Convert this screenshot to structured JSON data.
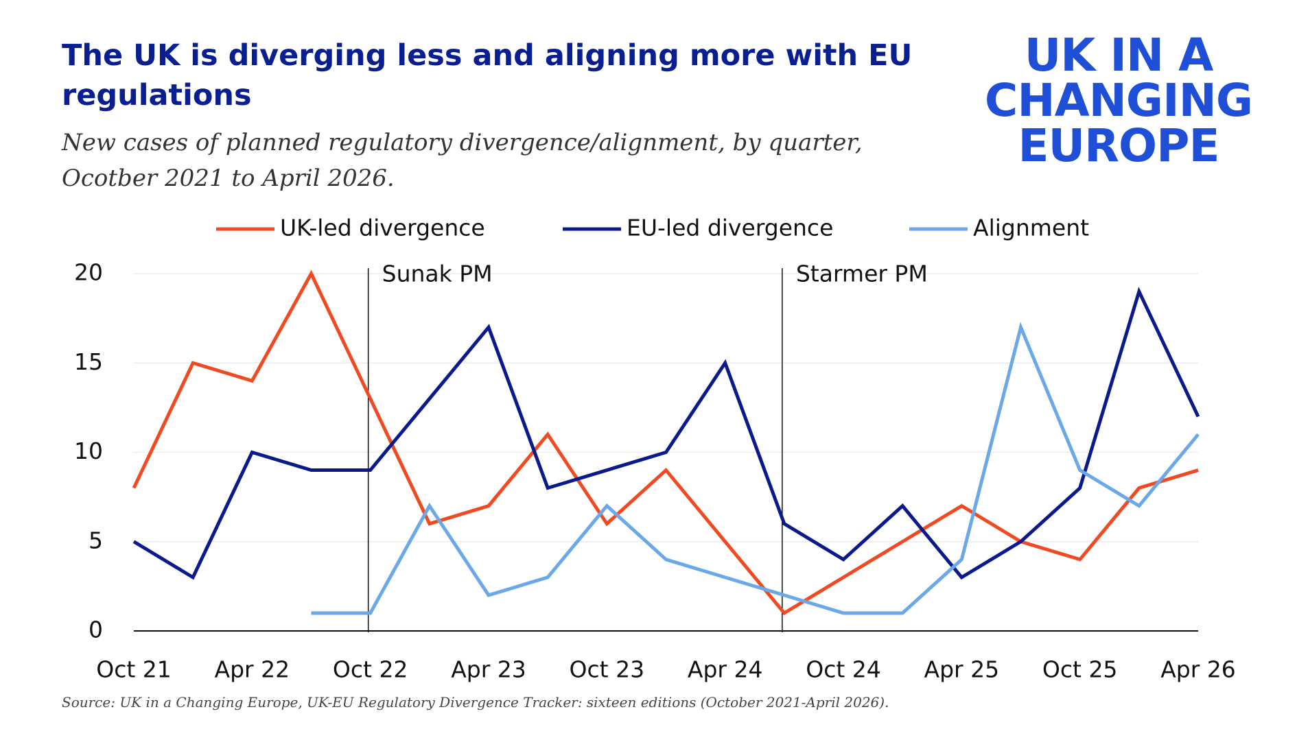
{
  "chart_data": {
    "type": "line",
    "title": "The UK is diverging less and aligning more with EU regulations",
    "subtitle": "New cases of planned regulatory divergence/alignment, by quarter, Ocotber 2021 to April 2026.",
    "source": "Source: UK in a Changing Europe, UK-EU Regulatory Divergence Tracker: sixteen editions (October 2021-April 2026).",
    "logo": [
      "UK IN A",
      "CHANGING",
      "EUROPE"
    ],
    "categories": [
      "Oct 21",
      null,
      "Apr 22",
      null,
      "Oct 22",
      null,
      "Apr 23",
      null,
      "Oct 23",
      null,
      "Apr 24",
      null,
      "Oct 24",
      null,
      "Apr 25",
      null,
      "Oct 25",
      null,
      "Apr 26"
    ],
    "series": [
      {
        "name": "UK-led divergence",
        "color": "#f04a23",
        "values": [
          8,
          15,
          14,
          20,
          13,
          6,
          7,
          11,
          6,
          9,
          5,
          1,
          3,
          5,
          7,
          5,
          4,
          8,
          9
        ]
      },
      {
        "name": "EU-led divergence",
        "color": "#0a1a8c",
        "values": [
          5,
          3,
          10,
          9,
          9,
          13,
          17,
          8,
          9,
          10,
          15,
          6,
          4,
          7,
          3,
          5,
          8,
          19,
          12
        ]
      },
      {
        "name": "Alignment",
        "color": "#6aa8e8",
        "values": [
          null,
          null,
          null,
          1,
          1,
          7,
          2,
          3,
          7,
          4,
          3,
          2,
          1,
          1,
          4,
          17,
          9,
          7,
          11
        ]
      }
    ],
    "annotations": [
      {
        "label": "Sunak PM",
        "x": 4
      },
      {
        "label": "Starmer PM",
        "x": 11
      }
    ],
    "ylim": [
      0,
      20
    ],
    "yticks": [
      0,
      5,
      10,
      15,
      20
    ],
    "grid": true
  }
}
